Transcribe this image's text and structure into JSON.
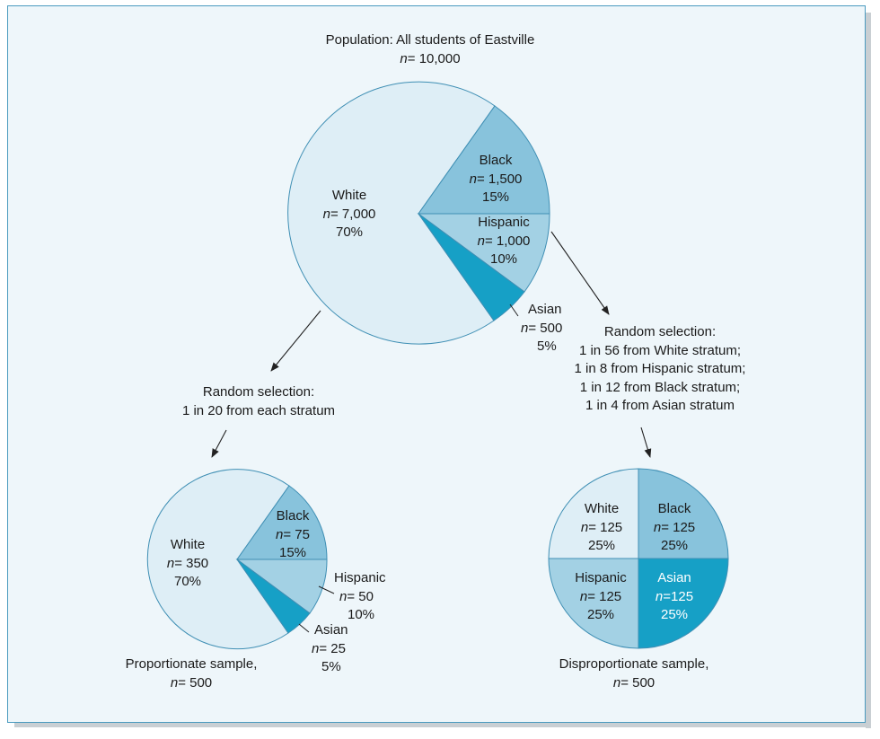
{
  "population": {
    "title": "Population: All students of Eastville",
    "n_label": "n",
    "n_value": "= 10,000",
    "slices": [
      {
        "group": "White",
        "n_label": "n",
        "n_value": "= 7,000",
        "pct": "70%",
        "share": 0.7,
        "color": "#deeef6"
      },
      {
        "group": "Black",
        "n_label": "n",
        "n_value": "= 1,500",
        "pct": "15%",
        "share": 0.15,
        "color": "#88c3dc"
      },
      {
        "group": "Hispanic",
        "n_label": "n",
        "n_value": "= 1,000",
        "pct": "10%",
        "share": 0.1,
        "color": "#a3d1e4"
      },
      {
        "group": "Asian",
        "n_label": "n",
        "n_value": "= 500",
        "pct": "5%",
        "share": 0.05,
        "color": "#16a0c6"
      }
    ]
  },
  "proportionate_selection": {
    "line1": "Random selection:",
    "line2": "1 in 20 from each stratum"
  },
  "disproportionate_selection": {
    "line1": "Random selection:",
    "line2": "1 in 56 from White stratum;",
    "line3": "1 in 8 from Hispanic stratum;",
    "line4": "1 in 12 from Black stratum;",
    "line5": "1 in 4 from Asian stratum"
  },
  "proportionate_sample": {
    "caption": "Proportionate sample,",
    "n_label": "n",
    "n_value": "= 500",
    "slices": [
      {
        "group": "White",
        "n_label": "n",
        "n_value": "= 350",
        "pct": "70%",
        "share": 0.7,
        "color": "#deeef6"
      },
      {
        "group": "Black",
        "n_label": "n",
        "n_value": "= 75",
        "pct": "15%",
        "share": 0.15,
        "color": "#88c3dc"
      },
      {
        "group": "Hispanic",
        "n_label": "n",
        "n_value": "= 50",
        "pct": "10%",
        "share": 0.1,
        "color": "#a3d1e4"
      },
      {
        "group": "Asian",
        "n_label": "n",
        "n_value": "= 25",
        "pct": "5%",
        "share": 0.05,
        "color": "#16a0c6"
      }
    ]
  },
  "disproportionate_sample": {
    "caption": "Disproportionate sample,",
    "n_label": "n",
    "n_value": "= 500",
    "slices": [
      {
        "group": "White",
        "n_label": "n",
        "n_value": "= 125",
        "pct": "25%",
        "share": 0.25,
        "color": "#deeef6"
      },
      {
        "group": "Black",
        "n_label": "n",
        "n_value": "= 125",
        "pct": "25%",
        "share": 0.25,
        "color": "#88c3dc"
      },
      {
        "group": "Hispanic",
        "n_label": "n",
        "n_value": "= 125",
        "pct": "25%",
        "share": 0.25,
        "color": "#a3d1e4"
      },
      {
        "group": "Asian",
        "n_label": "n",
        "n_value": "=125",
        "pct": "25%",
        "share": 0.25,
        "color": "#16a0c6"
      }
    ]
  }
}
